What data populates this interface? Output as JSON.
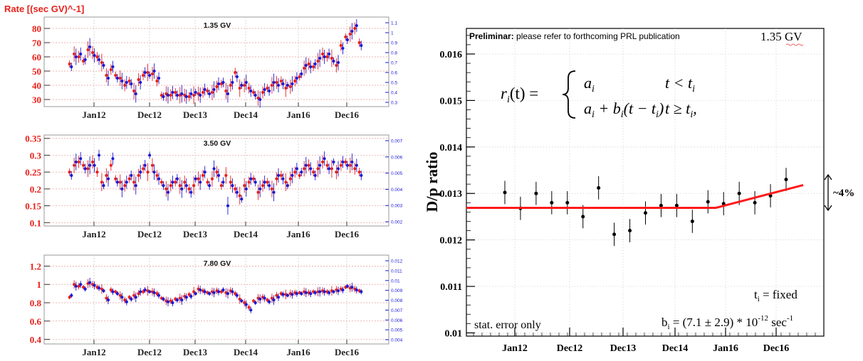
{
  "left_title": "Rate [(sec GV)^-1]",
  "colors": {
    "red": "#e8201a",
    "blue": "#1a1ad6",
    "axis_red": "#e8201a",
    "axis_blue": "#1a1ad6",
    "fit": "#ff1a1a"
  },
  "x_ticks": [
    "Jan12",
    "Dec12",
    "Dec13",
    "Dec14",
    "Jan16",
    "Dec16"
  ],
  "chart_data": [
    {
      "type": "scatter",
      "title": "1.35 GV",
      "ylim": [
        25,
        88
      ],
      "y_ticks": [
        30,
        40,
        50,
        60,
        70,
        80
      ],
      "right_ticks": [
        "0.3",
        "0.4",
        "0.5",
        "0.6",
        "0.7",
        "0.8",
        "0.9",
        "1",
        "1.1"
      ],
      "series": [
        {
          "name": "",
          "values": [
            55,
            62,
            60,
            57,
            65,
            63,
            60,
            56,
            47,
            51,
            47,
            45,
            40,
            43,
            36,
            44,
            47,
            49,
            48,
            43,
            33,
            34,
            33,
            35,
            33,
            33,
            32,
            33,
            34,
            35,
            36,
            35,
            39,
            41,
            36,
            40,
            49,
            38,
            40,
            38,
            35,
            31,
            35,
            38,
            40,
            42,
            43,
            38,
            39,
            43,
            46,
            52,
            55,
            53,
            57,
            62,
            60,
            59,
            54,
            68,
            74,
            76,
            80,
            70
          ]
        },
        {
          "name": "",
          "values": [
            53,
            60,
            62,
            58,
            67,
            61,
            58,
            54,
            45,
            53,
            45,
            43,
            42,
            41,
            34,
            42,
            49,
            47,
            50,
            45,
            32,
            33,
            35,
            33,
            34,
            32,
            34,
            35,
            33,
            37,
            34,
            37,
            41,
            42,
            34,
            42,
            46,
            40,
            42,
            36,
            33,
            30,
            37,
            36,
            42,
            40,
            41,
            40,
            41,
            45,
            48,
            54,
            53,
            55,
            59,
            60,
            62,
            57,
            56,
            66,
            72,
            78,
            82,
            68
          ]
        }
      ]
    },
    {
      "type": "scatter",
      "title": "3.50 GV",
      "ylim": [
        0.09,
        0.36
      ],
      "y_ticks": [
        0.1,
        0.15,
        0.2,
        0.25,
        0.3,
        0.35
      ],
      "right_ticks": [
        "0.002",
        "0.003",
        "0.004",
        "0.005",
        "0.006",
        "0.007"
      ],
      "series": [
        {
          "name": "",
          "values": [
            0.25,
            0.27,
            0.28,
            0.27,
            0.26,
            0.28,
            0.25,
            0.22,
            0.24,
            0.27,
            0.23,
            0.22,
            0.21,
            0.23,
            0.22,
            0.24,
            0.26,
            0.25,
            0.27,
            0.24,
            0.22,
            0.2,
            0.21,
            0.22,
            0.21,
            0.22,
            0.2,
            0.21,
            0.23,
            0.24,
            0.22,
            0.23,
            0.25,
            0.21,
            0.24,
            0.22,
            0.2,
            0.18,
            0.21,
            0.22,
            0.23,
            0.19,
            0.21,
            0.22,
            0.2,
            0.23,
            0.24,
            0.22,
            0.23,
            0.25,
            0.24,
            0.26,
            0.27,
            0.25,
            0.26,
            0.28,
            0.27,
            0.26,
            0.25,
            0.27,
            0.28,
            0.27,
            0.26,
            0.25
          ]
        },
        {
          "name": "",
          "values": [
            0.24,
            0.28,
            0.29,
            0.26,
            0.27,
            0.27,
            0.3,
            0.21,
            0.23,
            0.29,
            0.22,
            0.2,
            0.22,
            0.24,
            0.21,
            0.25,
            0.27,
            0.3,
            0.25,
            0.23,
            0.21,
            0.19,
            0.22,
            0.23,
            0.2,
            0.21,
            0.19,
            0.23,
            0.22,
            0.25,
            0.21,
            0.26,
            0.24,
            0.22,
            0.15,
            0.21,
            0.19,
            0.17,
            0.2,
            0.23,
            0.22,
            0.2,
            0.22,
            0.21,
            0.19,
            0.24,
            0.23,
            0.21,
            0.24,
            0.26,
            0.25,
            0.27,
            0.26,
            0.24,
            0.27,
            0.29,
            0.26,
            0.28,
            0.26,
            0.28,
            0.27,
            0.28,
            0.27,
            0.24
          ]
        }
      ]
    },
    {
      "type": "scatter",
      "title": "7.80 GV",
      "ylim": [
        0.35,
        1.32
      ],
      "y_ticks": [
        0.4,
        0.6,
        0.8,
        1,
        1.2
      ],
      "right_ticks": [
        "0.004",
        "0.005",
        "0.006",
        "0.007",
        "0.008",
        "0.009",
        "0.01",
        "0.011",
        "0.012"
      ],
      "series": [
        {
          "name": "",
          "values": [
            0.86,
            1.0,
            0.98,
            0.97,
            1.01,
            1.0,
            0.97,
            0.95,
            0.85,
            0.94,
            0.92,
            0.88,
            0.83,
            0.86,
            0.88,
            0.9,
            0.92,
            0.93,
            0.92,
            0.9,
            0.85,
            0.82,
            0.82,
            0.84,
            0.85,
            0.87,
            0.89,
            0.92,
            0.95,
            0.93,
            0.91,
            0.92,
            0.93,
            0.92,
            0.91,
            0.93,
            0.9,
            0.84,
            0.8,
            0.75,
            0.82,
            0.85,
            0.86,
            0.83,
            0.85,
            0.88,
            0.9,
            0.89,
            0.9,
            0.91,
            0.91,
            0.92,
            0.91,
            0.92,
            0.92,
            0.93,
            0.92,
            0.93,
            0.94,
            0.95,
            0.97,
            0.96,
            0.95,
            0.93
          ]
        },
        {
          "name": "",
          "values": [
            0.88,
            0.98,
            1.0,
            0.95,
            1.02,
            0.99,
            0.96,
            0.93,
            0.83,
            0.92,
            0.9,
            0.86,
            0.81,
            0.84,
            0.86,
            0.92,
            0.94,
            0.92,
            0.91,
            0.88,
            0.84,
            0.81,
            0.8,
            0.83,
            0.83,
            0.86,
            0.87,
            0.9,
            0.94,
            0.92,
            0.9,
            0.91,
            0.92,
            0.94,
            0.9,
            0.92,
            0.88,
            0.82,
            0.78,
            0.72,
            0.8,
            0.84,
            0.85,
            0.81,
            0.83,
            0.86,
            0.89,
            0.88,
            0.89,
            0.9,
            0.9,
            0.91,
            0.9,
            0.91,
            0.92,
            0.92,
            0.91,
            0.92,
            0.93,
            0.94,
            0.98,
            0.97,
            0.94,
            0.92
          ]
        }
      ]
    },
    {
      "type": "scatter",
      "title": "1.35 GV",
      "ylabel": "D/p ratio",
      "ylim": [
        0.00993,
        0.01655
      ],
      "y_ticks": [
        0.01,
        0.011,
        0.012,
        0.013,
        0.014,
        0.015,
        0.016
      ],
      "y_tick_labels": [
        "0.01",
        "0.011",
        "0.012",
        "0.013",
        "0.014",
        "0.015",
        "0.016"
      ],
      "x_ticks": [
        "Jan12",
        "Dec12",
        "Dec13",
        "Dec14",
        "Jan16",
        "Dec16"
      ],
      "points": [
        0.01302,
        0.01268,
        0.013,
        0.0128,
        0.0128,
        0.0125,
        0.01312,
        0.01212,
        0.0122,
        0.01258,
        0.01274,
        0.01274,
        0.0124,
        0.01282,
        0.01278,
        0.013,
        0.0128,
        0.01295,
        0.0133
      ],
      "errors": [
        0.00025,
        0.00025,
        0.00025,
        0.00025,
        0.00025,
        0.00025,
        0.00025,
        0.00025,
        0.00025,
        0.00025,
        0.00025,
        0.00025,
        0.00025,
        0.00025,
        0.00025,
        0.00025,
        0.00025,
        0.00025,
        0.00025
      ],
      "fit": {
        "flat": 0.01269,
        "break_index": 13.5,
        "end_value": 0.01318
      },
      "annotations": {
        "preliminar_bold": "Preliminar:",
        "preliminar_rest": " please refer to forthcoming PRL publication",
        "pct": "~4%",
        "stat": "stat. error only",
        "ti_fixed": "t",
        "ti_sub": "i",
        "ti_rest": " = fixed",
        "bi_b": "b",
        "bi_sub": "i",
        "bi_rest": " = (7.1 ± 2.9) * 10",
        "bi_exp": "-12",
        "bi_unit": "  sec",
        "bi_unit_exp": "-1",
        "formula_lhs": "r",
        "formula_lhs_sub": "i",
        "formula_lhs_rest": "(t) =",
        "case1_expr": "a",
        "case1_sub": "i",
        "case1_cond": "t < t",
        "case1_cond_sub": "i",
        "case2_expr_a": "a",
        "case2_expr_b": " + b",
        "case2_expr_rest": "(t − t",
        "case2_expr_close": ")",
        "case2_cond": "t ≥ t",
        "case2_cond_sub": "i",
        "case2_cond_end": ","
      }
    }
  ]
}
